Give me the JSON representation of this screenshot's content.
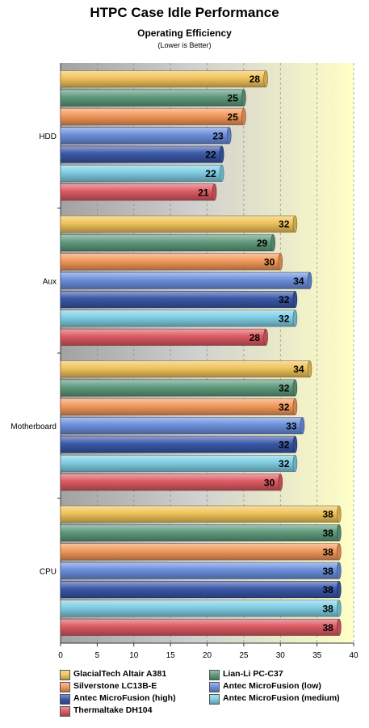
{
  "title": "HTPC Case Idle Performance",
  "subtitle": "Operating Efficiency",
  "note": "(Lower is Better)",
  "chart_data": {
    "type": "bar",
    "orientation": "horizontal",
    "title": "HTPC Case Idle Performance",
    "subtitle": "Operating Efficiency",
    "note": "(Lower is Better)",
    "categories": [
      "HDD",
      "Aux",
      "Motherboard",
      "CPU"
    ],
    "series": [
      {
        "name": "GlacialTech Altair A381",
        "color": "#f0c35a",
        "values": [
          28,
          32,
          34,
          38
        ]
      },
      {
        "name": "Lian-Li PC-C37",
        "color": "#5f9a7c",
        "values": [
          25,
          29,
          32,
          38
        ]
      },
      {
        "name": "Silverstone LC13B-E",
        "color": "#f2985a",
        "values": [
          25,
          30,
          32,
          38
        ]
      },
      {
        "name": "Antec MicroFusion (low)",
        "color": "#6b8fdc",
        "values": [
          23,
          34,
          33,
          38
        ]
      },
      {
        "name": "Antec MicroFusion (high)",
        "color": "#3a58a8",
        "values": [
          22,
          32,
          32,
          38
        ]
      },
      {
        "name": "Antec MicroFusion (medium)",
        "color": "#7fcde3",
        "values": [
          22,
          32,
          32,
          38
        ]
      },
      {
        "name": "Thermaltake DH104",
        "color": "#dc5a63",
        "values": [
          21,
          28,
          30,
          38
        ]
      }
    ],
    "xlim": [
      0,
      40
    ],
    "xticks": [
      0,
      5,
      10,
      15,
      20,
      25,
      30,
      35,
      40
    ],
    "grid": true,
    "legend_position": "bottom"
  }
}
